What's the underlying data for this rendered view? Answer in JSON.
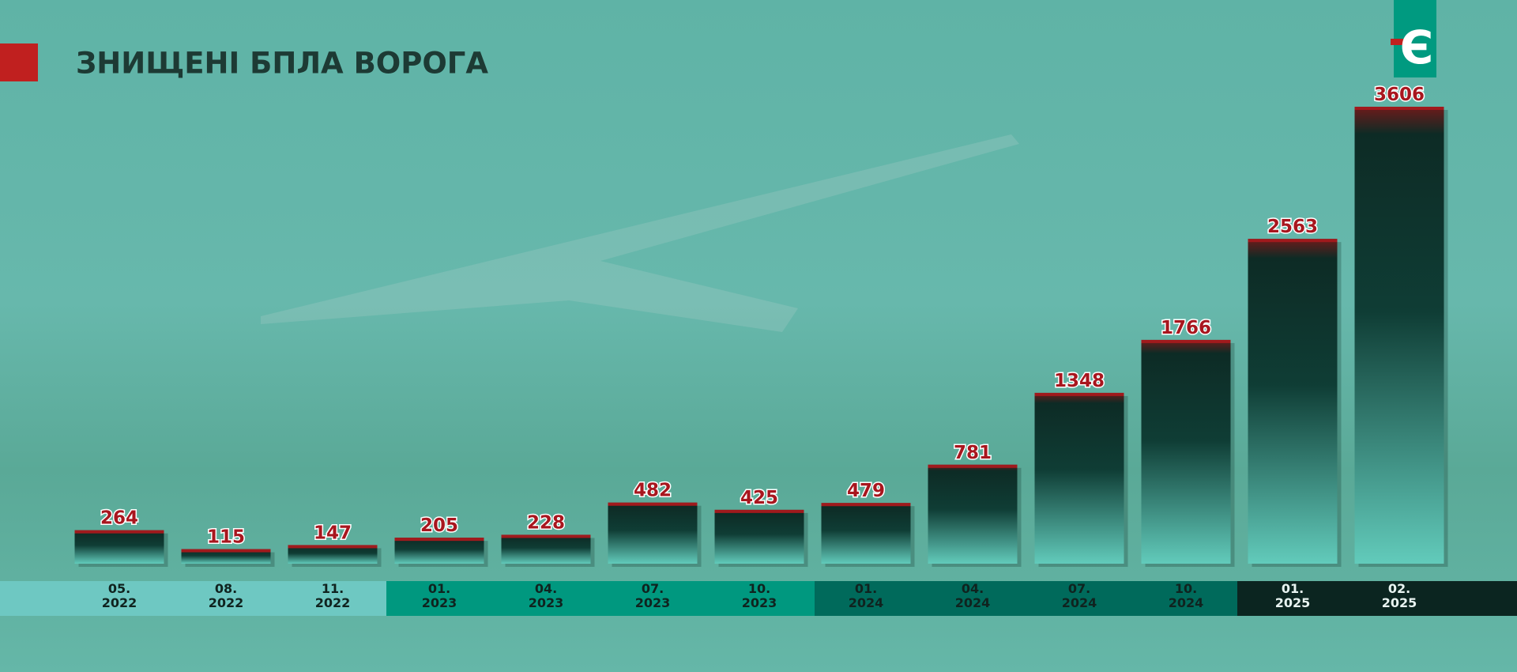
{
  "chart_data": {
    "type": "bar",
    "title": "ЗНИЩЕНІ БПЛА ВОРОГА",
    "logo": "Є",
    "categories": [
      "05.\n2022",
      "08.\n2022",
      "11.\n2022",
      "01.\n2023",
      "04.\n2023",
      "07.\n2023",
      "10.\n2023",
      "01.\n2024",
      "04.\n2024",
      "07.\n2024",
      "10.\n2024",
      "01.\n2025",
      "02.\n2025"
    ],
    "values": [
      264,
      115,
      147,
      205,
      228,
      482,
      425,
      479,
      781,
      1348,
      1766,
      2563,
      3606
    ]
  }
}
